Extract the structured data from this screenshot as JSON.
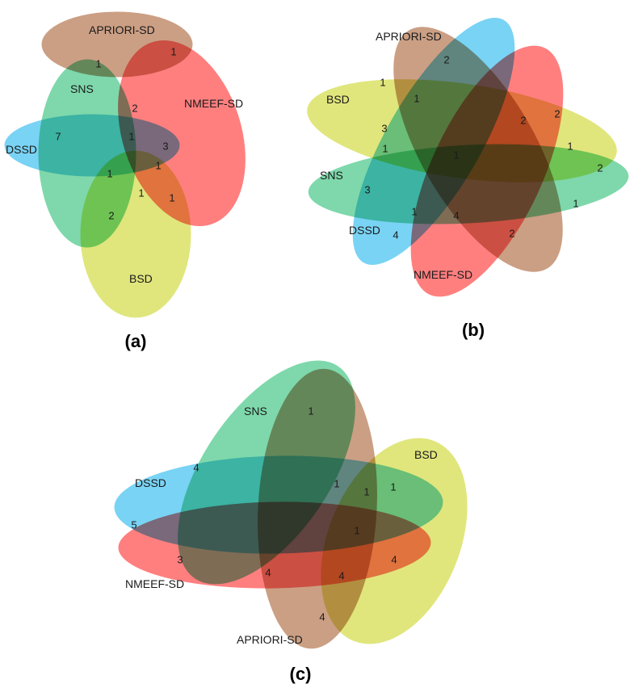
{
  "colors": {
    "APRIORI-SD": "#b77a55",
    "NMEEF-SD": "#ff4d4d",
    "SNS": "#4cc98a",
    "DSSD": "#45c2f0",
    "BSD": "#d4dc4a"
  },
  "panels": [
    {
      "id": "a",
      "caption": "(a)",
      "sets": [
        {
          "name": "APRIORI-SD",
          "label": "APRIORI-SD"
        },
        {
          "name": "NMEEF-SD",
          "label": "NMEEF-SD"
        },
        {
          "name": "SNS",
          "label": "SNS"
        },
        {
          "name": "DSSD",
          "label": "DSSD"
        },
        {
          "name": "BSD",
          "label": "BSD"
        }
      ],
      "counts": [
        "1",
        "1",
        "2",
        "7",
        "1",
        "3",
        "1",
        "1",
        "1",
        "1",
        "2"
      ]
    },
    {
      "id": "b",
      "caption": "(b)",
      "sets": [
        {
          "name": "APRIORI-SD",
          "label": "APRIORI-SD"
        },
        {
          "name": "BSD",
          "label": "BSD"
        },
        {
          "name": "SNS",
          "label": "SNS"
        },
        {
          "name": "DSSD",
          "label": "DSSD"
        },
        {
          "name": "NMEEF-SD",
          "label": "NMEEF-SD"
        }
      ],
      "counts": [
        "2",
        "1",
        "1",
        "2",
        "2",
        "3",
        "1",
        "1",
        "1",
        "2",
        "3",
        "1",
        "4",
        "1",
        "4",
        "2"
      ]
    },
    {
      "id": "c",
      "caption": "(c)",
      "sets": [
        {
          "name": "SNS",
          "label": "SNS"
        },
        {
          "name": "BSD",
          "label": "BSD"
        },
        {
          "name": "DSSD",
          "label": "DSSD"
        },
        {
          "name": "NMEEF-SD",
          "label": "NMEEF-SD"
        },
        {
          "name": "APRIORI-SD",
          "label": "APRIORI-SD"
        }
      ],
      "counts": [
        "1",
        "4",
        "1",
        "1",
        "1",
        "5",
        "1",
        "3",
        "4",
        "4",
        "4",
        "4"
      ]
    }
  ]
}
